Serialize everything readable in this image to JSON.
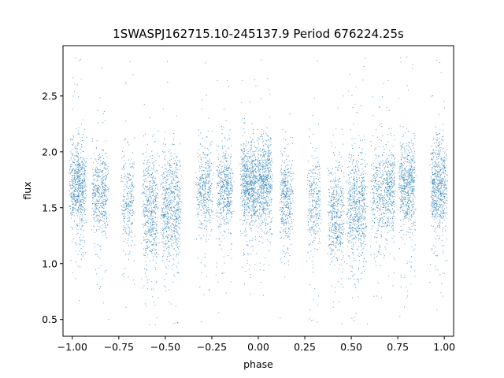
{
  "chart_data": {
    "type": "scatter",
    "title": "1SWASPJ162715.10-245137.9 Period 676224.25s",
    "xlabel": "phase",
    "ylabel": "flux",
    "xlim": [
      -1.05,
      1.05
    ],
    "ylim": [
      0.35,
      2.95
    ],
    "x_ticks": [
      -1.0,
      -0.75,
      -0.5,
      -0.25,
      0.0,
      0.25,
      0.5,
      0.75,
      1.0
    ],
    "x_tick_labels": [
      "−1.00",
      "−0.75",
      "−0.50",
      "−0.25",
      "0.00",
      "0.25",
      "0.50",
      "0.75",
      "1.00"
    ],
    "y_ticks": [
      0.5,
      1.0,
      1.5,
      2.0,
      2.5
    ],
    "y_tick_labels": [
      "0.5",
      "1.0",
      "1.5",
      "2.0",
      "2.5"
    ],
    "grid": false,
    "legend": "none",
    "marker_color": "#1f77b4",
    "phase_folded": true,
    "observing_clumps": {
      "phase_centers": [
        -0.97,
        -0.85,
        -0.7,
        -0.58,
        -0.47,
        -0.29,
        -0.18,
        -0.05,
        0.03,
        0.15,
        0.3,
        0.42,
        0.53,
        0.65,
        0.71,
        0.8,
        0.97
      ],
      "phase_widths": [
        0.05,
        0.05,
        0.04,
        0.05,
        0.06,
        0.05,
        0.05,
        0.05,
        0.05,
        0.04,
        0.04,
        0.05,
        0.06,
        0.05,
        0.03,
        0.05,
        0.05
      ],
      "median_flux": [
        1.7,
        1.62,
        1.56,
        1.45,
        1.5,
        1.65,
        1.66,
        1.7,
        1.72,
        1.62,
        1.56,
        1.45,
        1.5,
        1.62,
        1.66,
        1.7,
        1.7
      ],
      "flux_spread": [
        0.2,
        0.2,
        0.22,
        0.25,
        0.25,
        0.2,
        0.2,
        0.2,
        0.2,
        0.2,
        0.22,
        0.25,
        0.25,
        0.22,
        0.2,
        0.2,
        0.2
      ],
      "point_count": [
        650,
        450,
        280,
        500,
        650,
        400,
        500,
        700,
        650,
        380,
        300,
        450,
        650,
        350,
        300,
        600,
        650
      ]
    },
    "min_flux": 0.45,
    "max_flux": 2.85
  }
}
